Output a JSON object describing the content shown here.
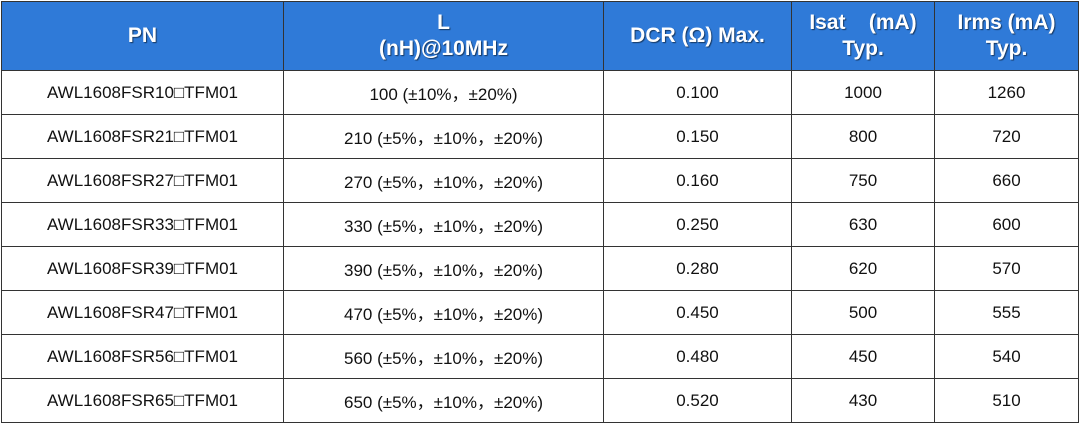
{
  "table": {
    "headers": [
      {
        "lines": [
          "PN"
        ]
      },
      {
        "lines": [
          "L",
          "(nH)@10MHz"
        ]
      },
      {
        "lines": [
          "DCR (Ω) Max."
        ]
      },
      {
        "lines": [
          "Isat    (mA)",
          "Typ."
        ]
      },
      {
        "lines": [
          "Irms (mA)",
          "Typ."
        ]
      }
    ],
    "rows": [
      [
        "AWL1608FSR10□TFM01",
        "100 (±10%，±20%)",
        "0.100",
        "1000",
        "1260"
      ],
      [
        "AWL1608FSR21□TFM01",
        "210 (±5%，±10%，±20%)",
        "0.150",
        "800",
        "720"
      ],
      [
        "AWL1608FSR27□TFM01",
        "270 (±5%，±10%，±20%)",
        "0.160",
        "750",
        "660"
      ],
      [
        "AWL1608FSR33□TFM01",
        "330 (±5%，±10%，±20%)",
        "0.250",
        "630",
        "600"
      ],
      [
        "AWL1608FSR39□TFM01",
        "390 (±5%，±10%，±20%)",
        "0.280",
        "620",
        "570"
      ],
      [
        "AWL1608FSR47□TFM01",
        "470 (±5%，±10%，±20%)",
        "0.450",
        "500",
        "555"
      ],
      [
        "AWL1608FSR56□TFM01",
        "560 (±5%，±10%，±20%)",
        "0.480",
        "450",
        "540"
      ],
      [
        "AWL1608FSR65□TFM01",
        "650 (±5%，±10%，±20%)",
        "0.520",
        "430",
        "510"
      ]
    ],
    "colors": {
      "header_bg": "#2f7ad8",
      "header_text": "#ffffff",
      "border": "#333333"
    }
  }
}
